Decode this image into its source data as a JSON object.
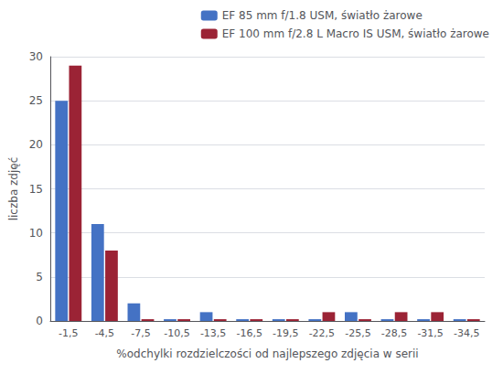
{
  "chart_data": {
    "type": "bar",
    "categories": [
      "-1,5",
      "-4,5",
      "-7,5",
      "-10,5",
      "-13,5",
      "-16,5",
      "-19,5",
      "-22,5",
      "-25,5",
      "-28,5",
      "-31,5",
      "-34,5"
    ],
    "series": [
      {
        "name": "EF 85 mm f/1.8 USM, światło żarowe",
        "color": "#4472C4",
        "values": [
          25,
          11,
          2,
          0.2,
          1,
          0.2,
          0.2,
          0.2,
          1,
          0.2,
          0.2,
          0.2
        ]
      },
      {
        "name": "EF 100 mm f/2.8 L Macro IS USM, światło żarowe",
        "color": "#9B2335",
        "values": [
          29,
          8,
          0.2,
          0.2,
          0.2,
          0.2,
          0.2,
          1,
          0.2,
          1,
          1,
          0.2
        ]
      }
    ],
    "xlabel": "%odchylki rozdzielczości od najlepszego zdjęcia w serii",
    "ylabel": "liczba zdjęć",
    "ylim": [
      0,
      30
    ],
    "yticks": [
      0,
      5,
      10,
      15,
      20,
      25,
      30
    ],
    "grid": true,
    "legend": "upper right"
  }
}
